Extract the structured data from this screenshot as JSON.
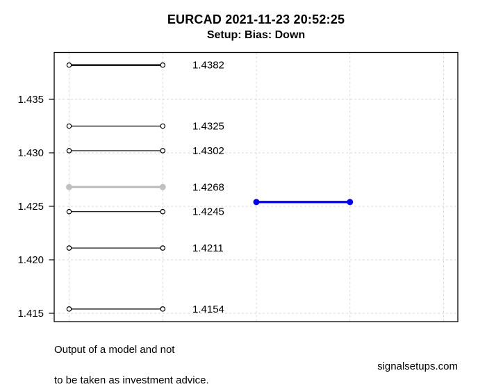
{
  "header": {
    "title": "EURCAD 2021-11-23 20:52:25",
    "subtitle": "Setup: Bias: Down"
  },
  "footer": {
    "disclaimer_line1": "Output of a model and not",
    "disclaimer_line2": "to be taken as investment advice.",
    "website": "signalsetups.com"
  },
  "colors": {
    "level_black": "#000000",
    "level_gray": "#c0c0c0",
    "signal_blue": "#0000ee",
    "grid": "#d8d8d8",
    "axis": "#000000",
    "marker_fill_open": "#ffffff"
  },
  "chart_data": {
    "type": "line",
    "title": "EURCAD 2021-11-23 20:52:25",
    "subtitle": "Setup: Bias: Down",
    "ylim": [
      1.4142,
      1.4394
    ],
    "yticks": [
      {
        "value": 1.435,
        "label": "1.435"
      },
      {
        "value": 1.43,
        "label": "1.430"
      },
      {
        "value": 1.425,
        "label": "1.425"
      },
      {
        "value": 1.42,
        "label": "1.420"
      },
      {
        "value": 1.415,
        "label": "1.415"
      }
    ],
    "grid": true,
    "grid_style": "dashed",
    "x_gridline_count": 5,
    "legend": "none",
    "levels": [
      {
        "price": 1.4382,
        "label": "1.4382",
        "color": "#000000",
        "line_width": 2.4,
        "marker": "open-circle",
        "span": [
          1,
          2
        ]
      },
      {
        "price": 1.4325,
        "label": "1.4325",
        "color": "#000000",
        "line_width": 1.2,
        "marker": "open-circle",
        "span": [
          1,
          2
        ]
      },
      {
        "price": 1.4302,
        "label": "1.4302",
        "color": "#000000",
        "line_width": 1.2,
        "marker": "open-circle",
        "span": [
          1,
          2
        ]
      },
      {
        "price": 1.4268,
        "label": "1.4268",
        "color": "#c0c0c0",
        "line_width": 3.4,
        "marker": "filled-circle",
        "span": [
          1,
          2
        ]
      },
      {
        "price": 1.4245,
        "label": "1.4245",
        "color": "#000000",
        "line_width": 1.2,
        "marker": "open-circle",
        "span": [
          1,
          2
        ]
      },
      {
        "price": 1.4211,
        "label": "1.4211",
        "color": "#000000",
        "line_width": 1.2,
        "marker": "open-circle",
        "span": [
          1,
          2
        ]
      },
      {
        "price": 1.4154,
        "label": "1.4154",
        "color": "#000000",
        "line_width": 1.2,
        "marker": "open-circle",
        "span": [
          1,
          2
        ]
      }
    ],
    "signal_line": {
      "price": 1.4254,
      "label": "",
      "color": "#0000ee",
      "line_width": 3.4,
      "marker": "filled-circle",
      "span": [
        3,
        4
      ]
    }
  }
}
